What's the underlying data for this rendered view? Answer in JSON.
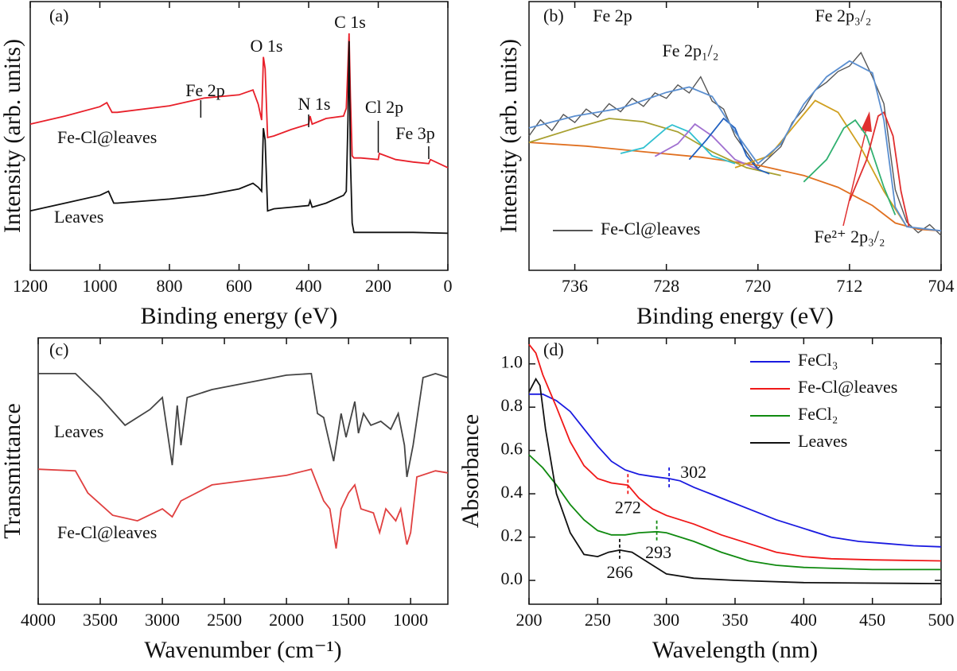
{
  "chart_data": [
    {
      "type": "line",
      "xlabel": "Binding energy (eV)",
      "ylabel": "Intensity (arb. units)",
      "xlim": [
        1200,
        0
      ],
      "xticks": [
        1200,
        1000,
        800,
        600,
        400,
        200,
        0
      ],
      "ylim": [
        0,
        100
      ],
      "legend": "inline",
      "annotations": [
        "(a)",
        "O 1s",
        "C 1s",
        "Fe 2p",
        "N 1s",
        "Cl 2p",
        "Fe 3p"
      ],
      "series": [
        {
          "name": "Fe-Cl@leaves",
          "color": "#e8202a",
          "x": [
            1200,
            1100,
            1000,
            980,
            965,
            950,
            800,
            700,
            600,
            560,
            545,
            535,
            530,
            525,
            518,
            500,
            450,
            400,
            396,
            390,
            350,
            300,
            292,
            287,
            284,
            280,
            275,
            270,
            250,
            200,
            197,
            150,
            100,
            55,
            50,
            0
          ],
          "values": [
            54.4,
            57.4,
            60.9,
            62.4,
            58.8,
            58.8,
            61.2,
            64.1,
            65.3,
            67.1,
            61.8,
            55.9,
            79.4,
            75,
            49.4,
            50,
            52.4,
            54.4,
            57.4,
            54.4,
            56.5,
            57.4,
            60.3,
            76.5,
            88.2,
            64.7,
            42.6,
            41.8,
            41.8,
            41.2,
            43.5,
            41.2,
            40.3,
            39.7,
            41.2,
            38.2
          ]
        },
        {
          "name": "Leaves",
          "color": "#111111",
          "x": [
            1200,
            1100,
            1000,
            975,
            960,
            950,
            800,
            700,
            600,
            560,
            545,
            535,
            530,
            525,
            518,
            500,
            450,
            400,
            396,
            390,
            350,
            300,
            292,
            287,
            284,
            280,
            275,
            270,
            200,
            100,
            0
          ],
          "values": [
            22.1,
            25,
            27.9,
            29.4,
            25,
            25,
            26.5,
            27.9,
            30.3,
            32.4,
            30.9,
            29.4,
            52.9,
            48.5,
            22.1,
            22.9,
            23.5,
            24.1,
            25.9,
            23.5,
            25,
            27.9,
            29.4,
            55.9,
            85.3,
            41.2,
            17.6,
            14.1,
            14.1,
            14.1,
            13.8
          ]
        }
      ]
    },
    {
      "type": "line",
      "xlabel": "Binding energy (eV)",
      "ylabel": "Intensity (arb. units)",
      "xlim": [
        740,
        704
      ],
      "xticks": [
        736,
        728,
        720,
        712,
        704
      ],
      "ylim": [
        0,
        100
      ],
      "legend": "lower left",
      "annotations": [
        "(b)",
        "Fe 2p",
        "Fe 2p₁/₂",
        "Fe 2p₃/₂",
        "Fe²⁺ 2p₃/₂"
      ],
      "series": [
        {
          "name": "Fe-Cl@leaves",
          "color": "#555555",
          "x": [
            740,
            739,
            738,
            737,
            736,
            735,
            734,
            733,
            732,
            731,
            730,
            729,
            728,
            727,
            726,
            725,
            724,
            723,
            722,
            721,
            720,
            719,
            718,
            717,
            716,
            715,
            714,
            713,
            712,
            711,
            710,
            709,
            708,
            707,
            706,
            705,
            704
          ],
          "values": [
            50,
            56,
            52,
            58,
            55,
            60,
            57,
            62,
            59,
            64,
            61,
            66,
            64,
            69,
            66,
            72,
            63,
            60,
            50,
            44,
            38,
            42,
            46,
            55,
            60,
            67,
            70,
            74,
            76,
            81,
            72,
            62,
            30,
            18,
            14,
            17,
            13
          ]
        },
        {
          "color": "#e07020",
          "x": [
            740,
            735,
            730,
            725,
            720,
            716,
            713,
            710,
            708,
            706,
            704
          ],
          "values": [
            47.6,
            46.2,
            44.1,
            42.1,
            39.1,
            35.3,
            30.9,
            24.1,
            17.6,
            15.3,
            14.7
          ]
        },
        {
          "color": "#a8a030",
          "x": [
            740,
            736,
            733,
            730,
            727,
            724,
            721,
            718
          ],
          "values": [
            47.6,
            52.9,
            56.5,
            55.3,
            51.5,
            44.1,
            38.2,
            35.3
          ]
        },
        {
          "color": "#30c0d0",
          "x": [
            732,
            730,
            728,
            727.5,
            726,
            724,
            722
          ],
          "values": [
            43.5,
            45.6,
            52.9,
            54.1,
            51.5,
            42.6,
            39.7
          ]
        },
        {
          "color": "#a070d0",
          "x": [
            729,
            727,
            725.5,
            724,
            722,
            720
          ],
          "values": [
            42.4,
            47.1,
            54.4,
            50,
            41.2,
            37.6
          ]
        },
        {
          "color": "#2060c0",
          "x": [
            726,
            724.5,
            723,
            722,
            721,
            720,
            719
          ],
          "values": [
            41.2,
            48.5,
            56.5,
            52.9,
            42.6,
            37.6,
            35.9
          ]
        },
        {
          "color": "#d0a020",
          "x": [
            722,
            719,
            717,
            715,
            713,
            711,
            709,
            707
          ],
          "values": [
            38.2,
            42.6,
            52.9,
            63.2,
            58.8,
            45.6,
            29.4,
            16.2
          ]
        },
        {
          "color": "#30b070",
          "x": [
            716,
            714,
            712.5,
            711.5,
            710.5,
            709,
            708
          ],
          "values": [
            32.9,
            41.2,
            52.9,
            55.9,
            50,
            30.9,
            20.6
          ]
        },
        {
          "color": "#e03030",
          "x": [
            712,
            710.5,
            709.5,
            709,
            708.2,
            707.5,
            706.8
          ],
          "values": [
            25.9,
            41.2,
            57.4,
            58.8,
            50,
            29.4,
            16.2
          ]
        },
        {
          "color": "#5b8fd0",
          "x": [
            740,
            736,
            732,
            728,
            726,
            724,
            722,
            720,
            718,
            716,
            714,
            712,
            710,
            709,
            708,
            707,
            704
          ],
          "values": [
            53,
            57.4,
            60.3,
            66.2,
            68.2,
            64.7,
            51.5,
            39.7,
            47,
            61.8,
            72,
            77.9,
            73.5,
            55.9,
            23.5,
            16.2,
            14.7
          ]
        }
      ]
    },
    {
      "type": "line",
      "xlabel": "Wavenumber (cm⁻¹)",
      "ylabel": "Transmittance",
      "xlim": [
        4000,
        700
      ],
      "xticks": [
        4000,
        3500,
        3000,
        2500,
        2000,
        1500,
        1000
      ],
      "ylim": [
        0,
        100
      ],
      "legend": "inline",
      "annotations": [
        "(c)"
      ],
      "series": [
        {
          "name": "Leaves",
          "color": "#444444",
          "x": [
            4000,
            3700,
            3500,
            3300,
            3100,
            3000,
            2920,
            2880,
            2850,
            2800,
            2600,
            2000,
            1800,
            1750,
            1700,
            1620,
            1560,
            1520,
            1450,
            1420,
            1380,
            1320,
            1240,
            1160,
            1100,
            1050,
            1030,
            980,
            900,
            800,
            700
          ],
          "values": [
            86.6,
            86.6,
            77.6,
            67.2,
            73.1,
            77.6,
            52.2,
            74.6,
            59.7,
            77.6,
            80.6,
            86.0,
            86.6,
            71.6,
            70.1,
            53.7,
            71.6,
            62.7,
            76.1,
            64.2,
            71.6,
            67.2,
            68.7,
            65.7,
            71.6,
            59.7,
            47.8,
            59.7,
            85.1,
            86.6,
            85.1
          ]
        },
        {
          "name": "Fe-Cl@leaves",
          "color": "#e04040",
          "x": [
            4000,
            3700,
            3600,
            3400,
            3200,
            3000,
            2920,
            2850,
            2600,
            2000,
            1800,
            1700,
            1650,
            1600,
            1560,
            1500,
            1450,
            1400,
            1300,
            1250,
            1200,
            1120,
            1080,
            1030,
            1000,
            950,
            800,
            700
          ],
          "values": [
            50.7,
            50.1,
            41.8,
            33.4,
            31.3,
            35.8,
            32.8,
            38.8,
            44.8,
            48.4,
            50.7,
            38.8,
            35.8,
            20.9,
            35.8,
            41.8,
            44.8,
            35.8,
            34.3,
            26.9,
            35.8,
            31.3,
            35.8,
            22.4,
            26.9,
            47.8,
            50.1,
            49.3
          ]
        }
      ]
    },
    {
      "type": "line",
      "xlabel": "Wavelength (nm)",
      "ylabel": "Absorbance",
      "xlim": [
        200,
        500
      ],
      "xticks": [
        200,
        250,
        300,
        350,
        400,
        450,
        500
      ],
      "ylim": [
        -0.11,
        1.12
      ],
      "yticks": [
        {
          "value": 0,
          "label": "0.0"
        },
        0.2,
        0.4,
        0.6,
        0.8,
        {
          "value": 1,
          "label": "1.0"
        }
      ],
      "legend": "upper right",
      "annotations": [
        "(d)"
      ],
      "series": [
        {
          "name": "FeCl₃",
          "color": "#1a1ae0",
          "peak": 302,
          "x": [
            200,
            210,
            220,
            230,
            240,
            250,
            260,
            270,
            280,
            290,
            302,
            310,
            320,
            340,
            360,
            380,
            400,
            420,
            440,
            460,
            480,
            500
          ],
          "values": [
            0.86,
            0.86,
            0.83,
            0.78,
            0.7,
            0.62,
            0.55,
            0.51,
            0.49,
            0.48,
            0.47,
            0.46,
            0.43,
            0.38,
            0.33,
            0.28,
            0.24,
            0.2,
            0.18,
            0.17,
            0.16,
            0.155
          ]
        },
        {
          "name": "Fe-Cl@leaves",
          "color": "#f01818",
          "peak": 272,
          "x": [
            200,
            205,
            210,
            220,
            230,
            240,
            250,
            260,
            272,
            280,
            290,
            300,
            320,
            340,
            360,
            380,
            400,
            420,
            450,
            500
          ],
          "values": [
            1.09,
            1.05,
            0.95,
            0.8,
            0.64,
            0.53,
            0.47,
            0.45,
            0.44,
            0.38,
            0.33,
            0.3,
            0.26,
            0.21,
            0.17,
            0.13,
            0.11,
            0.1,
            0.095,
            0.09
          ]
        },
        {
          "name": "FeCl₂",
          "color": "#108a10",
          "peak": 293,
          "x": [
            200,
            210,
            220,
            230,
            240,
            250,
            260,
            270,
            280,
            293,
            300,
            320,
            340,
            360,
            380,
            400,
            450,
            500
          ],
          "values": [
            0.58,
            0.52,
            0.44,
            0.35,
            0.28,
            0.23,
            0.21,
            0.21,
            0.22,
            0.225,
            0.22,
            0.18,
            0.13,
            0.09,
            0.07,
            0.06,
            0.05,
            0.05
          ]
        },
        {
          "name": "Leaves",
          "color": "#111111",
          "peak": 266,
          "x": [
            200,
            205,
            208,
            212,
            220,
            230,
            240,
            250,
            258,
            266,
            275,
            290,
            300,
            320,
            350,
            400,
            500
          ],
          "values": [
            0.87,
            0.93,
            0.9,
            0.7,
            0.4,
            0.22,
            0.12,
            0.11,
            0.13,
            0.14,
            0.13,
            0.07,
            0.03,
            0.01,
            0.0,
            -0.01,
            -0.015
          ]
        }
      ]
    }
  ]
}
